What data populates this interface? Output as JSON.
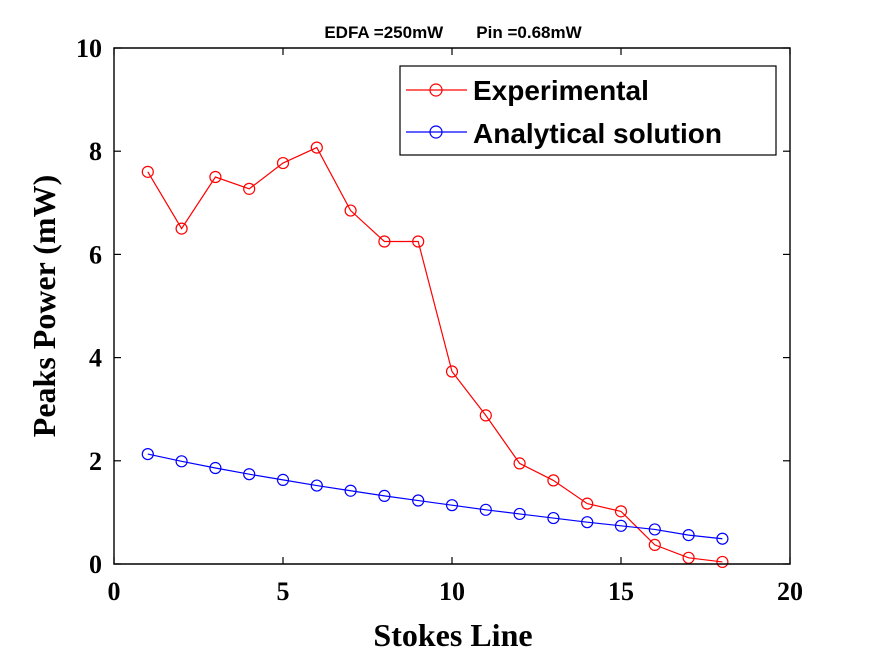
{
  "chart_data": {
    "type": "line",
    "title": "EDFA =250mW       Pin =0.68mW",
    "xlabel": "Stokes Line",
    "ylabel": "Peaks Power (mW)",
    "xlim": [
      0,
      20
    ],
    "ylim": [
      0,
      10
    ],
    "xticks": [
      0,
      5,
      10,
      15,
      20
    ],
    "yticks": [
      0,
      2,
      4,
      6,
      8,
      10
    ],
    "grid": false,
    "legend_position": "top-right",
    "x": [
      1,
      2,
      3,
      4,
      5,
      6,
      7,
      8,
      9,
      10,
      11,
      12,
      13,
      14,
      15,
      16,
      17,
      18
    ],
    "series": [
      {
        "name": "Experimental",
        "color": "#ff0000",
        "marker": "circle",
        "values": [
          7.6,
          6.5,
          7.5,
          7.27,
          7.77,
          8.07,
          6.85,
          6.25,
          6.25,
          3.73,
          2.88,
          1.95,
          1.62,
          1.17,
          1.02,
          0.37,
          0.12,
          0.04
        ]
      },
      {
        "name": "Analytical solution",
        "color": "#0000ff",
        "marker": "circle",
        "values": [
          2.13,
          1.99,
          1.86,
          1.74,
          1.63,
          1.52,
          1.42,
          1.32,
          1.23,
          1.14,
          1.05,
          0.97,
          0.89,
          0.81,
          0.74,
          0.67,
          0.56,
          0.49
        ]
      }
    ]
  }
}
